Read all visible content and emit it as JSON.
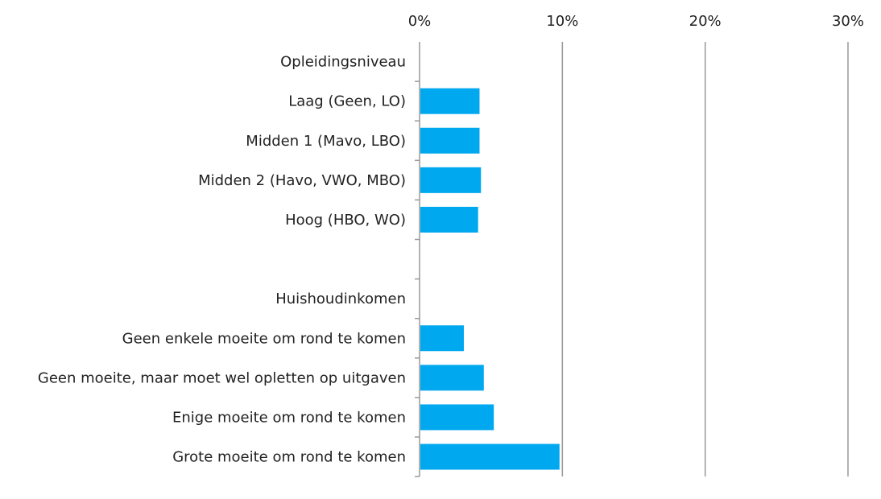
{
  "chart_data": {
    "type": "bar",
    "orientation": "horizontal",
    "categories": [
      "Opleidingsniveau",
      "Laag (Geen, LO)",
      "Midden 1 (Mavo, LBO)",
      "Midden 2 (Havo, VWO, MBO)",
      "Hoog (HBO, WO)",
      "",
      "Huishoudinkomen",
      "Geen enkele moeite om rond te komen",
      "Geen moeite, maar moet wel opletten op uitgaven",
      "Enige moeite om rond te komen",
      "Grote moeite om rond te komen"
    ],
    "values": [
      null,
      4.2,
      4.2,
      4.3,
      4.1,
      null,
      null,
      3.1,
      4.5,
      5.2,
      9.8
    ],
    "x_ticks": [
      "0%",
      "10%",
      "20%",
      "30%"
    ],
    "x_tick_values": [
      0,
      10,
      20,
      30
    ],
    "xlim": [
      0,
      30
    ],
    "x_axis_position": "top",
    "grid": true,
    "title": "",
    "xlabel": "",
    "ylabel": "",
    "bar_color": "#00a8f0",
    "grid_color": "#999999"
  }
}
